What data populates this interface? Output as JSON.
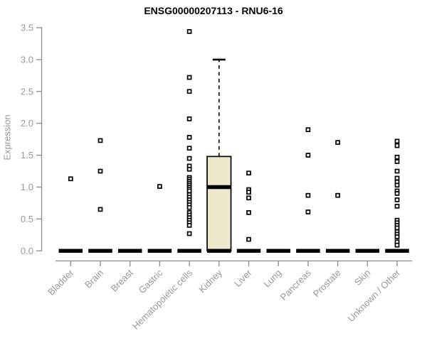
{
  "chart_data": {
    "type": "boxplot",
    "title": "ENSG00000207113 - RNU6-16",
    "ylabel": "Expression",
    "xlabel": "",
    "ylim": [
      0,
      3.5
    ],
    "yticks": [
      0.0,
      0.5,
      1.0,
      1.5,
      2.0,
      2.5,
      3.0,
      3.5
    ],
    "grid": false,
    "legend": "none",
    "categories": [
      "Bladder",
      "Brain",
      "Breast",
      "Gastric",
      "Hematopoietic cells",
      "Kidney",
      "Liver",
      "Lung",
      "Pancreas",
      "Prostate",
      "Skin",
      "Unknown / Other"
    ],
    "boxes": [
      {
        "category": "Bladder",
        "min": 0,
        "q1": 0,
        "median": 0,
        "q3": 0,
        "max": 0
      },
      {
        "category": "Brain",
        "min": 0,
        "q1": 0,
        "median": 0,
        "q3": 0,
        "max": 0
      },
      {
        "category": "Breast",
        "min": 0,
        "q1": 0,
        "median": 0,
        "q3": 0,
        "max": 0
      },
      {
        "category": "Gastric",
        "min": 0,
        "q1": 0,
        "median": 0,
        "q3": 0,
        "max": 0
      },
      {
        "category": "Hematopoietic cells",
        "min": 0,
        "q1": 0,
        "median": 0,
        "q3": 0,
        "max": 0
      },
      {
        "category": "Kidney",
        "min": 0,
        "q1": 0,
        "median": 1.0,
        "q3": 1.48,
        "max": 3.0
      },
      {
        "category": "Liver",
        "min": 0,
        "q1": 0,
        "median": 0,
        "q3": 0,
        "max": 0
      },
      {
        "category": "Lung",
        "min": 0,
        "q1": 0,
        "median": 0,
        "q3": 0,
        "max": 0
      },
      {
        "category": "Pancreas",
        "min": 0,
        "q1": 0,
        "median": 0,
        "q3": 0,
        "max": 0
      },
      {
        "category": "Prostate",
        "min": 0,
        "q1": 0,
        "median": 0,
        "q3": 0,
        "max": 0
      },
      {
        "category": "Skin",
        "min": 0,
        "q1": 0,
        "median": 0,
        "q3": 0,
        "max": 0
      },
      {
        "category": "Unknown / Other",
        "min": 0,
        "q1": 0,
        "median": 0,
        "q3": 0,
        "max": 0
      }
    ],
    "outlier_points": {
      "Bladder": [
        1.13
      ],
      "Brain": [
        1.73,
        1.25,
        0.65
      ],
      "Breast": [],
      "Gastric": [
        1.01
      ],
      "Hematopoietic cells": [
        3.44,
        2.72,
        2.5,
        2.07,
        1.78,
        1.61,
        1.45,
        1.33,
        1.28,
        1.15,
        1.12,
        1.09,
        1.06,
        1.03,
        1.0,
        0.97,
        0.94,
        0.88,
        0.84,
        0.8,
        0.76,
        0.72,
        0.68,
        0.6,
        0.56,
        0.52,
        0.48,
        0.44,
        0.4,
        0.27
      ],
      "Kidney": [],
      "Liver": [
        1.22,
        0.96,
        0.92,
        0.83,
        0.6,
        0.18
      ],
      "Lung": [],
      "Pancreas": [
        1.9,
        1.5,
        0.87,
        0.61
      ],
      "Prostate": [
        1.7,
        0.87
      ],
      "Skin": [],
      "Unknown / Other": [
        1.72,
        1.65,
        1.47,
        1.4,
        1.25,
        1.14,
        1.08,
        1.03,
        0.94,
        0.9,
        0.8,
        0.7,
        0.48,
        0.44,
        0.4,
        0.36,
        0.3,
        0.26,
        0.22,
        0.14,
        0.09
      ]
    },
    "colors": {
      "box_fill": "#EEE8CD",
      "box_stroke": "#000000",
      "median": "#000000",
      "point_stroke": "#000000",
      "point_fill": "#FFFFFF",
      "axis_line": "#8C8C8C",
      "tick_label": "#999999",
      "title": "#000000"
    }
  }
}
